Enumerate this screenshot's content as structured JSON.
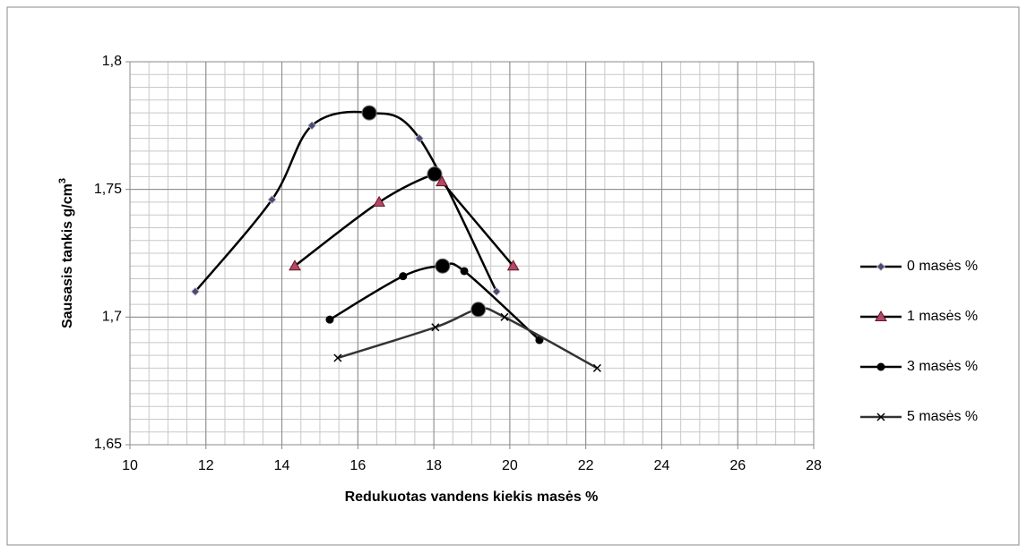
{
  "chart_data": {
    "type": "scatter",
    "x_label": "Redukuotas vandens kiekis masės %",
    "y_label": "Sausasis tankis g/cm",
    "y_label_sup": "3",
    "xlim": [
      10,
      28
    ],
    "xticks": [
      10,
      12,
      14,
      16,
      18,
      20,
      22,
      24,
      26,
      28
    ],
    "ylim": [
      1.65,
      1.8
    ],
    "yticks": [
      {
        "value": 1.65,
        "label": "1,65"
      },
      {
        "value": 1.7,
        "label": "1,7"
      },
      {
        "value": 1.75,
        "label": "1,75"
      },
      {
        "value": 1.8,
        "label": "1,8"
      }
    ],
    "grid": true,
    "x_minor_step": 0.5,
    "y_minor_step": 0.005,
    "legend": "right",
    "series": [
      {
        "name": "0 masės %",
        "color": "#000000",
        "marker": "diamond",
        "marker_color": "#4a4a78",
        "x": [
          11.72,
          13.74,
          14.79,
          16.3,
          17.62,
          19.65
        ],
        "values": [
          1.71,
          1.746,
          1.775,
          1.78,
          1.77,
          1.71
        ],
        "peak_index": 3
      },
      {
        "name": "1 masės %",
        "color": "#000000",
        "marker": "triangle",
        "marker_color": "#b04a68",
        "x": [
          14.34,
          16.56,
          18.02,
          18.21,
          20.09
        ],
        "values": [
          1.72,
          1.745,
          1.756,
          1.753,
          1.72
        ],
        "peak_index": 2
      },
      {
        "name": "3 masės %",
        "color": "#000000",
        "marker": "circle",
        "marker_color": "#000000",
        "x": [
          15.26,
          17.19,
          18.23,
          18.8,
          20.78
        ],
        "values": [
          1.699,
          1.716,
          1.72,
          1.718,
          1.691
        ],
        "peak_index": 2
      },
      {
        "name": "5 masės %",
        "color": "#333333",
        "marker": "cross",
        "marker_color": "#000000",
        "x": [
          15.47,
          18.04,
          19.17,
          19.86,
          22.3
        ],
        "values": [
          1.684,
          1.696,
          1.703,
          1.7,
          1.68
        ],
        "peak_index": 2
      }
    ]
  }
}
